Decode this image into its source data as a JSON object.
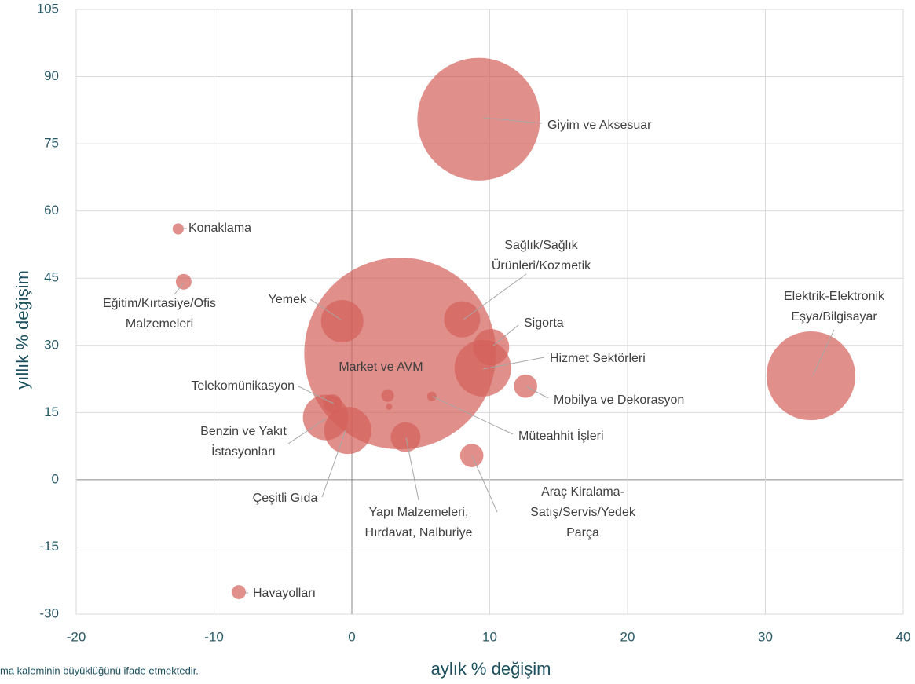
{
  "chart_data": {
    "type": "bubble",
    "x_label": "aylık % değişim",
    "y_label": "yıllık % değişim",
    "note": "ma kaleminin büyüklüğünü ifade etmektedir.",
    "color": "#d4605a",
    "grid": true,
    "xlim": [
      -20,
      40
    ],
    "ylim": [
      -30,
      105
    ],
    "xticks": [
      -20,
      -10,
      0,
      10,
      20,
      30,
      40
    ],
    "yticks": [
      -30,
      -15,
      0,
      15,
      30,
      45,
      60,
      75,
      90,
      105
    ],
    "labels": [
      [
        "Giyim ve Aksesuar"
      ],
      [
        "Market ve AVM"
      ],
      [
        "Elektrik-Elektronik",
        "Eşya/Bilgisayar"
      ],
      [
        "Konaklama"
      ],
      [
        "Eğitim/Kırtasiye/Ofis",
        "Malzemeleri"
      ],
      [
        "Yemek"
      ],
      [
        "Sağlık/Sağlık",
        "Ürünleri/Kozmetik"
      ],
      [
        "Sigorta"
      ],
      [
        "Hizmet Sektörleri"
      ],
      [
        "Mobilya ve Dekorasyon"
      ],
      [
        "Telekomünikasyon"
      ],
      [
        "Benzin ve Yakıt",
        "İstasyonları"
      ],
      [
        "Çeşitli Gıda"
      ],
      [
        "Yapı Malzemeleri,",
        "Hırdavat, Nalburiye"
      ],
      [
        "Müteahhit İşleri"
      ],
      [
        "Araç Kiralama-",
        "Satış/Servis/Yedek",
        "Parça"
      ],
      [
        "Havayolları"
      ],
      null,
      null
    ],
    "x": [
      9.2,
      3.5,
      33.3,
      -12.6,
      -12.2,
      -0.7,
      8.0,
      10.1,
      9.5,
      12.6,
      -1.4,
      -1.9,
      -0.3,
      3.9,
      5.8,
      8.7,
      -8.2,
      2.6,
      2.7
    ],
    "values": [
      80.5,
      28.2,
      23.2,
      56,
      44.2,
      35.4,
      35.8,
      29.6,
      24.9,
      20.9,
      17,
      13.9,
      11,
      9.5,
      18.6,
      5.4,
      -25.1,
      18.8,
      16.3
    ],
    "sizes": [
      61,
      149,
      32,
      0.5,
      1,
      7.3,
      5.3,
      5.3,
      13,
      2.2,
      1.4,
      8.4,
      9,
      3.6,
      0.36,
      2.2,
      0.8,
      0.64,
      0.16
    ]
  }
}
